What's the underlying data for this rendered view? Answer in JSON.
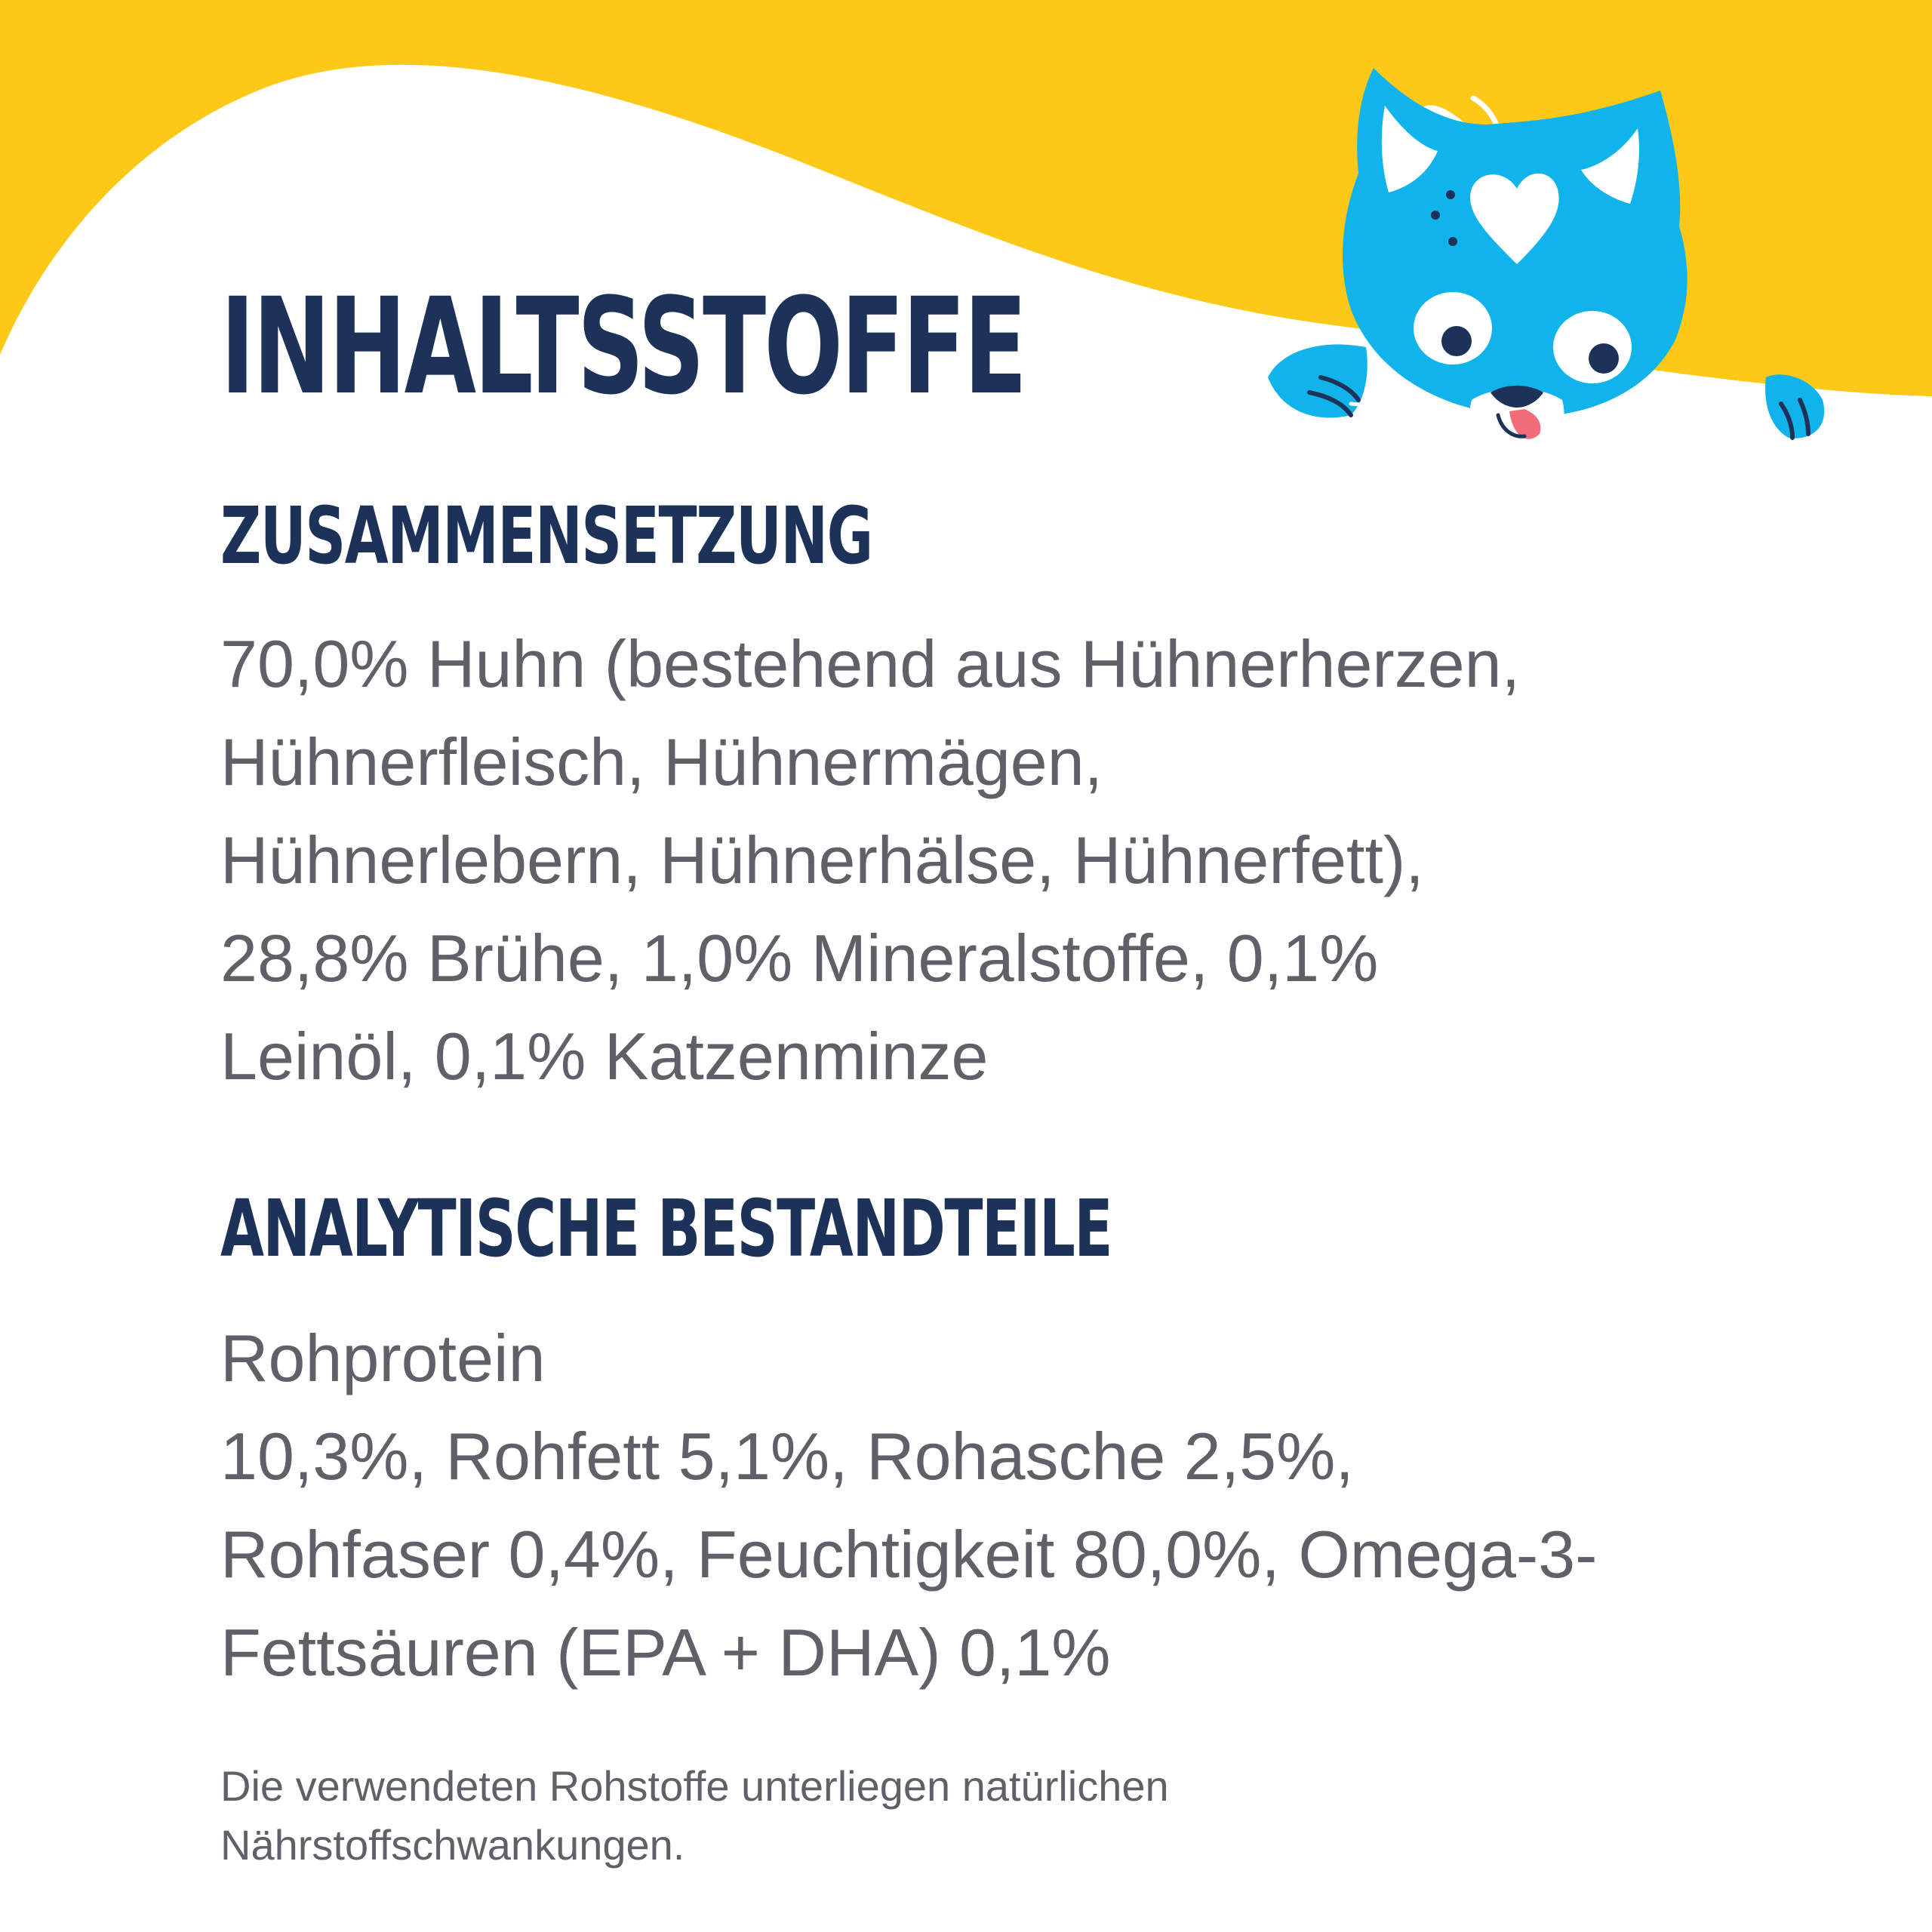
{
  "colors": {
    "yellow": "#fdc919",
    "navy": "#1c3259",
    "cat_blue": "#10b4ea",
    "text_gray": "#5f6068"
  },
  "illustration": "cat-peeking-icon",
  "title": "INHALTSSTOFFE",
  "composition": {
    "heading": "ZUSAMMENSETZUNG",
    "lines": [
      "70,0% Huhn (bestehend aus Hühnerherzen,",
      "Hühnerfleisch, Hühnermägen,",
      "Hühnerlebern, Hühnerhälse, Hühnerfett),",
      "28,8% Brühe, 1,0% Mineralstoffe, 0,1%",
      "Leinöl, 0,1% Katzenminze"
    ]
  },
  "analytical": {
    "heading": "ANALYTISCHE BESTANDTEILE",
    "lines": [
      "Rohprotein",
      "10,3%, Rohfett 5,1%, Rohasche 2,5%,",
      "Rohfaser 0,4%, Feuchtigkeit 80,0%, Omega-3-",
      "Fettsäuren (EPA + DHA) 0,1%"
    ]
  },
  "note": {
    "lines": [
      "Die verwendeten Rohstoffe unterliegen natürlichen",
      "Nährstoffschwankungen."
    ]
  }
}
